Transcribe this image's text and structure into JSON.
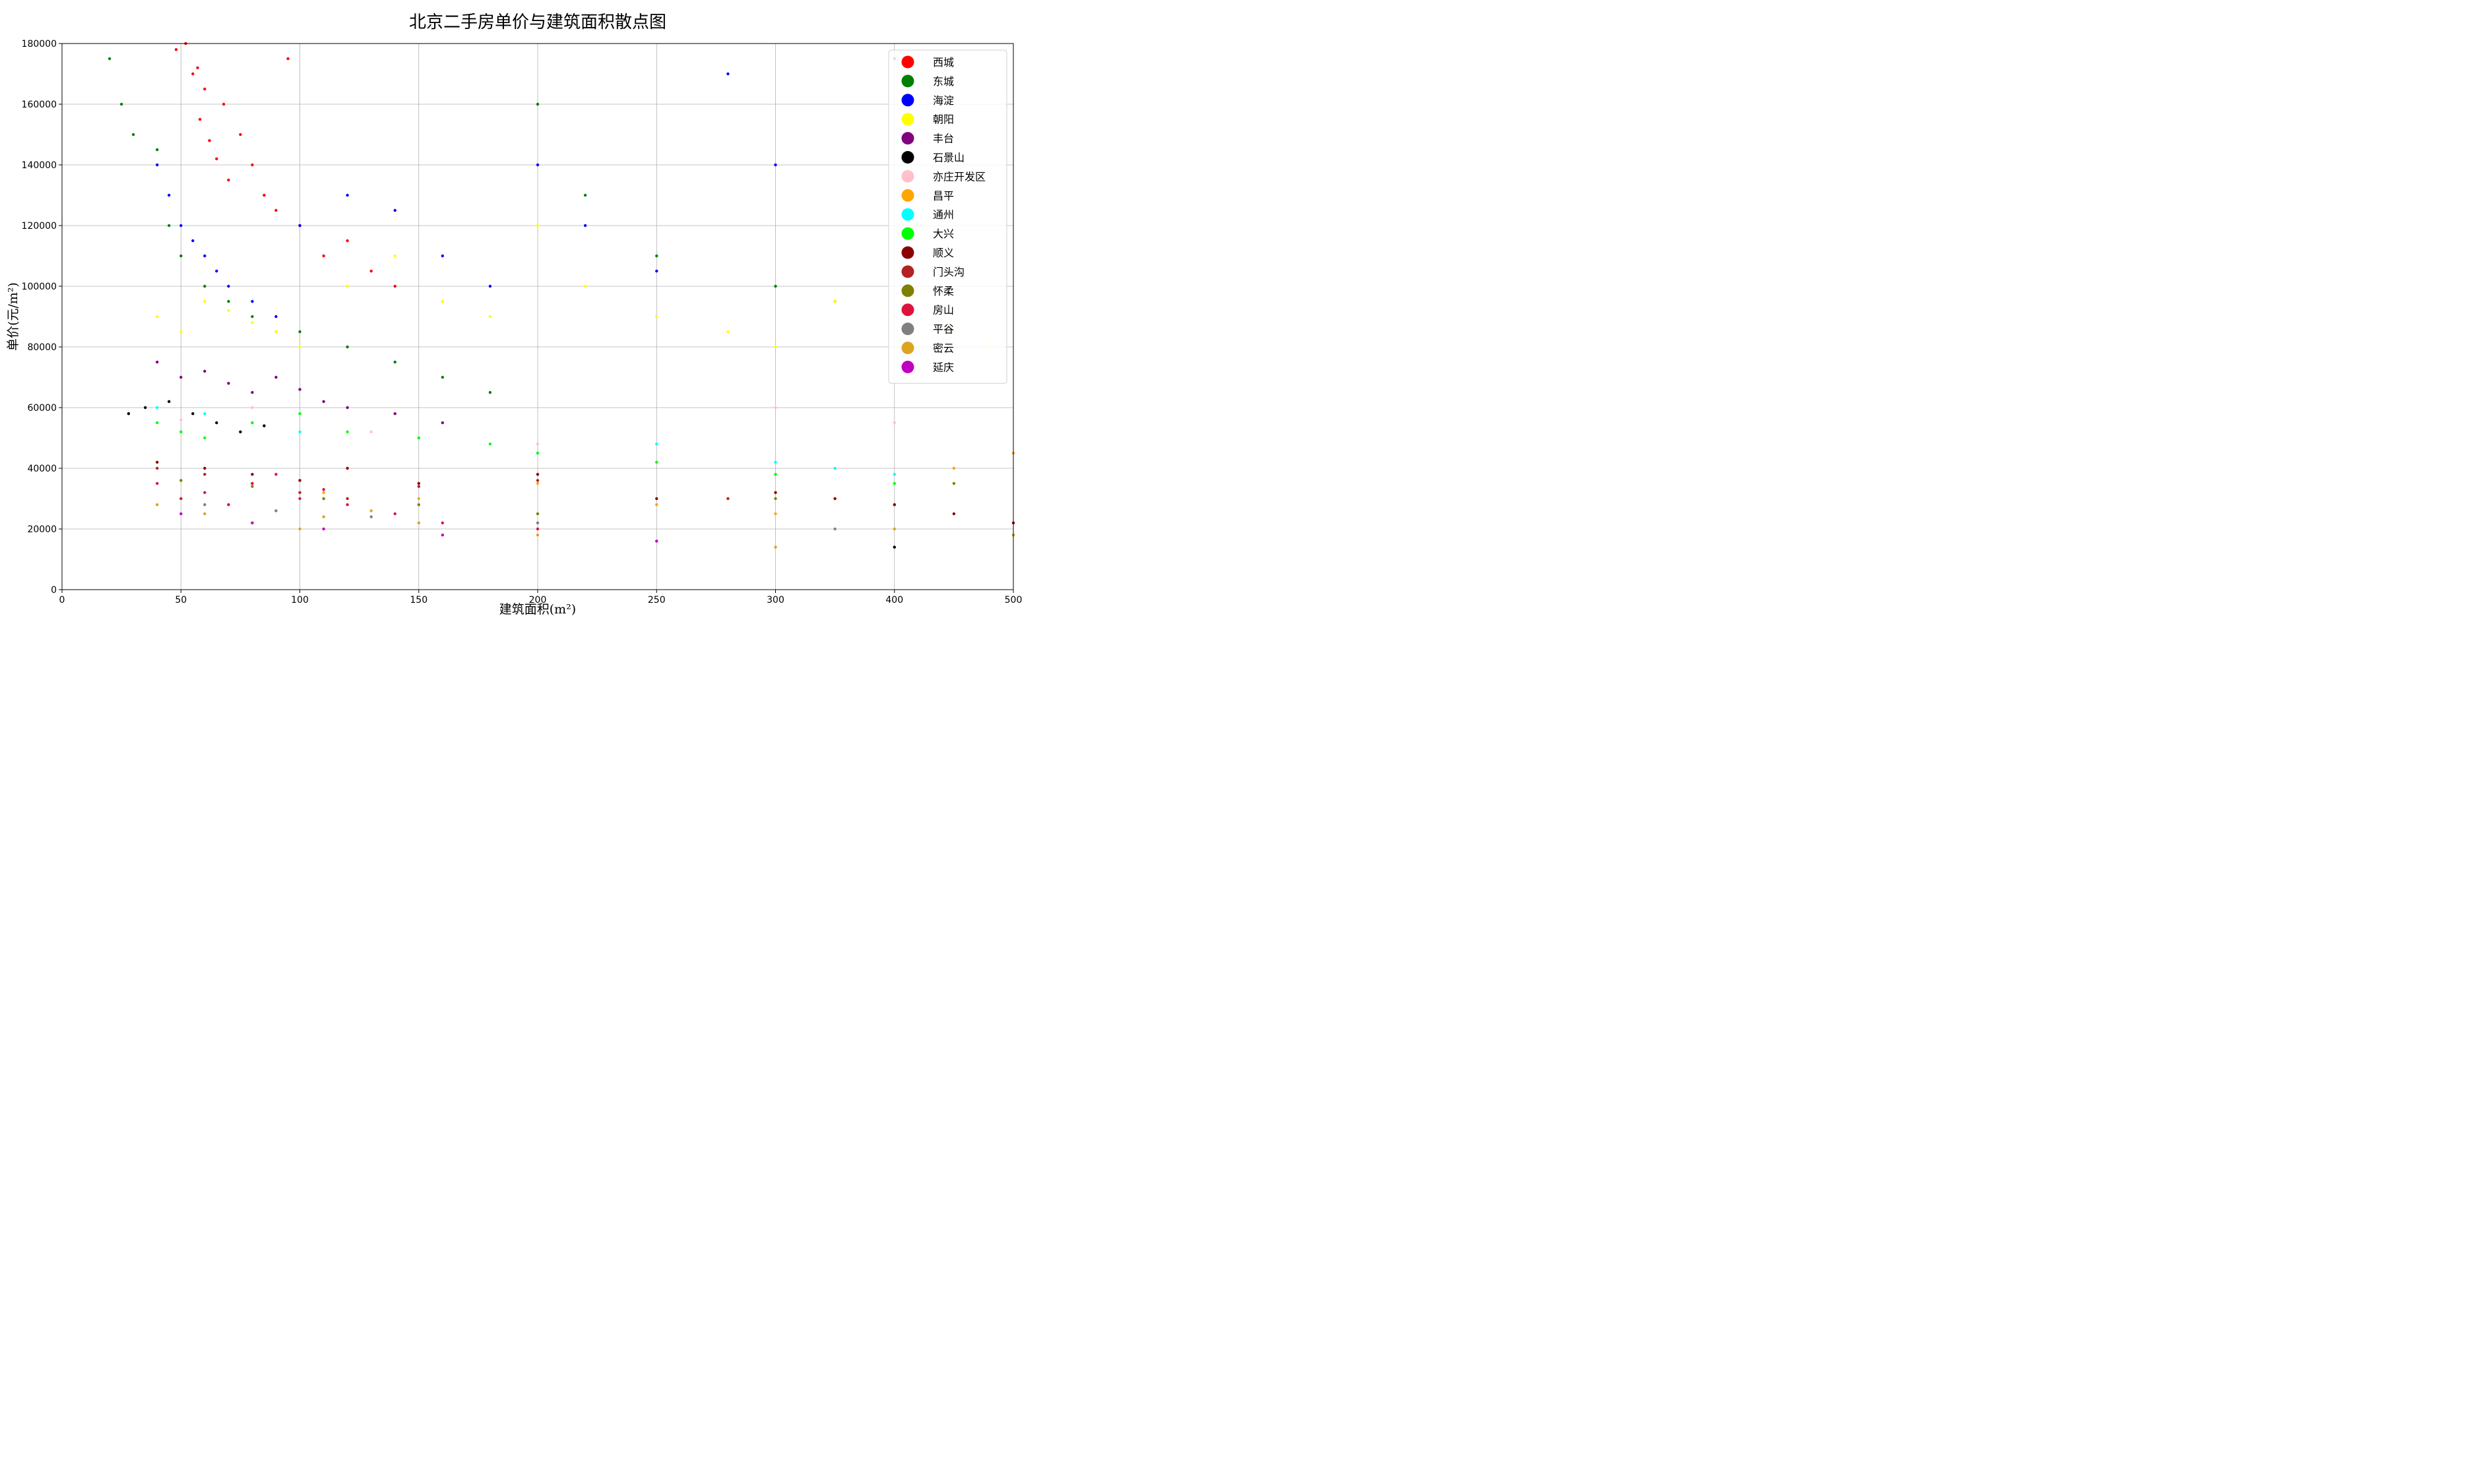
{
  "chart_data": {
    "type": "scatter",
    "title": "北京二手房单价与建筑面积散点图",
    "xlabel": "建筑面积(m²)",
    "ylabel": "单价(元/m²)",
    "xlim": [
      0,
      500
    ],
    "ylim": [
      0,
      180000
    ],
    "x_ticks": [
      0,
      50,
      100,
      150,
      200,
      250,
      300,
      400,
      500
    ],
    "y_ticks": [
      0,
      20000,
      40000,
      60000,
      80000,
      100000,
      120000,
      140000,
      160000,
      180000
    ],
    "grid": true,
    "legend_position": "top-right",
    "series": [
      {
        "name": "西城",
        "color": "#ff0000",
        "points": [
          [
            52,
            180000
          ],
          [
            55,
            170000
          ],
          [
            60,
            165000
          ],
          [
            58,
            155000
          ],
          [
            62,
            148000
          ],
          [
            65,
            142000
          ],
          [
            70,
            135000
          ],
          [
            68,
            160000
          ],
          [
            75,
            150000
          ],
          [
            80,
            140000
          ],
          [
            85,
            130000
          ],
          [
            90,
            125000
          ],
          [
            95,
            175000
          ],
          [
            100,
            120000
          ],
          [
            110,
            110000
          ],
          [
            120,
            115000
          ],
          [
            130,
            105000
          ],
          [
            140,
            100000
          ],
          [
            48,
            178000
          ],
          [
            57,
            172000
          ]
        ]
      },
      {
        "name": "东城",
        "color": "#008000",
        "points": [
          [
            20,
            175000
          ],
          [
            25,
            160000
          ],
          [
            30,
            150000
          ],
          [
            40,
            145000
          ],
          [
            45,
            120000
          ],
          [
            50,
            110000
          ],
          [
            60,
            100000
          ],
          [
            70,
            95000
          ],
          [
            80,
            90000
          ],
          [
            100,
            85000
          ],
          [
            120,
            80000
          ],
          [
            140,
            75000
          ],
          [
            160,
            70000
          ],
          [
            180,
            65000
          ],
          [
            200,
            160000
          ],
          [
            220,
            130000
          ],
          [
            250,
            110000
          ],
          [
            300,
            100000
          ],
          [
            350,
            95000
          ],
          [
            400,
            90000
          ]
        ]
      },
      {
        "name": "海淀",
        "color": "#0000ff",
        "points": [
          [
            40,
            140000
          ],
          [
            45,
            130000
          ],
          [
            50,
            120000
          ],
          [
            55,
            115000
          ],
          [
            60,
            110000
          ],
          [
            65,
            105000
          ],
          [
            70,
            100000
          ],
          [
            80,
            95000
          ],
          [
            90,
            90000
          ],
          [
            100,
            120000
          ],
          [
            120,
            130000
          ],
          [
            140,
            125000
          ],
          [
            160,
            110000
          ],
          [
            180,
            100000
          ],
          [
            200,
            140000
          ],
          [
            220,
            120000
          ],
          [
            250,
            105000
          ],
          [
            280,
            170000
          ],
          [
            300,
            140000
          ],
          [
            400,
            175000
          ]
        ]
      },
      {
        "name": "朝阳",
        "color": "#ffff00",
        "points": [
          [
            40,
            90000
          ],
          [
            50,
            85000
          ],
          [
            60,
            95000
          ],
          [
            70,
            92000
          ],
          [
            80,
            88000
          ],
          [
            90,
            85000
          ],
          [
            100,
            80000
          ],
          [
            120,
            100000
          ],
          [
            140,
            110000
          ],
          [
            160,
            95000
          ],
          [
            180,
            90000
          ],
          [
            200,
            120000
          ],
          [
            220,
            100000
          ],
          [
            250,
            90000
          ],
          [
            280,
            85000
          ],
          [
            300,
            80000
          ],
          [
            350,
            95000
          ],
          [
            400,
            90000
          ],
          [
            450,
            85000
          ],
          [
            480,
            80000
          ]
        ]
      },
      {
        "name": "丰台",
        "color": "#800080",
        "points": [
          [
            40,
            75000
          ],
          [
            50,
            70000
          ],
          [
            60,
            72000
          ],
          [
            70,
            68000
          ],
          [
            80,
            65000
          ],
          [
            90,
            70000
          ],
          [
            100,
            66000
          ],
          [
            110,
            62000
          ],
          [
            120,
            60000
          ],
          [
            140,
            58000
          ],
          [
            160,
            55000
          ]
        ]
      },
      {
        "name": "石景山",
        "color": "#000000",
        "points": [
          [
            28,
            58000
          ],
          [
            35,
            60000
          ],
          [
            45,
            62000
          ],
          [
            55,
            58000
          ],
          [
            65,
            55000
          ],
          [
            75,
            52000
          ],
          [
            85,
            54000
          ],
          [
            400,
            14000
          ]
        ]
      },
      {
        "name": "亦庄开发区",
        "color": "#ffc0cb",
        "points": [
          [
            50,
            56000
          ],
          [
            80,
            60000
          ],
          [
            100,
            58000
          ],
          [
            130,
            52000
          ],
          [
            200,
            48000
          ],
          [
            300,
            60000
          ],
          [
            400,
            55000
          ]
        ]
      },
      {
        "name": "昌平",
        "color": "#ffa500",
        "points": [
          [
            50,
            30000
          ],
          [
            70,
            28000
          ],
          [
            90,
            26000
          ],
          [
            110,
            32000
          ],
          [
            150,
            30000
          ],
          [
            200,
            35000
          ],
          [
            250,
            28000
          ],
          [
            300,
            25000
          ],
          [
            350,
            30000
          ],
          [
            400,
            28000
          ],
          [
            450,
            40000
          ],
          [
            500,
            45000
          ]
        ]
      },
      {
        "name": "通州",
        "color": "#00ffff",
        "points": [
          [
            40,
            60000
          ],
          [
            60,
            58000
          ],
          [
            80,
            55000
          ],
          [
            100,
            52000
          ],
          [
            150,
            50000
          ],
          [
            200,
            45000
          ],
          [
            250,
            48000
          ],
          [
            300,
            42000
          ],
          [
            350,
            40000
          ],
          [
            400,
            38000
          ]
        ]
      },
      {
        "name": "大兴",
        "color": "#00ff00",
        "points": [
          [
            40,
            55000
          ],
          [
            50,
            52000
          ],
          [
            60,
            50000
          ],
          [
            80,
            55000
          ],
          [
            100,
            58000
          ],
          [
            120,
            52000
          ],
          [
            150,
            50000
          ],
          [
            180,
            48000
          ],
          [
            200,
            45000
          ],
          [
            250,
            42000
          ],
          [
            300,
            38000
          ],
          [
            400,
            35000
          ]
        ]
      },
      {
        "name": "顺义",
        "color": "#8b0000",
        "points": [
          [
            40,
            42000
          ],
          [
            60,
            40000
          ],
          [
            80,
            38000
          ],
          [
            100,
            36000
          ],
          [
            120,
            40000
          ],
          [
            150,
            35000
          ],
          [
            200,
            38000
          ],
          [
            250,
            30000
          ],
          [
            300,
            32000
          ],
          [
            350,
            30000
          ],
          [
            400,
            28000
          ],
          [
            450,
            25000
          ],
          [
            500,
            22000
          ]
        ]
      },
      {
        "name": "门头沟",
        "color": "#b22222",
        "points": [
          [
            40,
            40000
          ],
          [
            60,
            38000
          ],
          [
            80,
            35000
          ],
          [
            100,
            32000
          ],
          [
            120,
            30000
          ],
          [
            150,
            34000
          ],
          [
            200,
            36000
          ],
          [
            280,
            30000
          ]
        ]
      },
      {
        "name": "怀柔",
        "color": "#808000",
        "points": [
          [
            50,
            36000
          ],
          [
            80,
            34000
          ],
          [
            110,
            30000
          ],
          [
            150,
            28000
          ],
          [
            200,
            25000
          ],
          [
            300,
            30000
          ],
          [
            450,
            35000
          ]
        ]
      },
      {
        "name": "房山",
        "color": "#dc143c",
        "points": [
          [
            40,
            35000
          ],
          [
            50,
            30000
          ],
          [
            60,
            32000
          ],
          [
            70,
            28000
          ],
          [
            80,
            35000
          ],
          [
            90,
            38000
          ],
          [
            100,
            30000
          ],
          [
            110,
            33000
          ],
          [
            120,
            28000
          ],
          [
            140,
            25000
          ],
          [
            160,
            22000
          ],
          [
            200,
            20000
          ]
        ]
      },
      {
        "name": "平谷",
        "color": "#808080",
        "points": [
          [
            60,
            28000
          ],
          [
            90,
            26000
          ],
          [
            130,
            24000
          ],
          [
            200,
            22000
          ],
          [
            350,
            20000
          ],
          [
            500,
            18000
          ]
        ]
      },
      {
        "name": "密云",
        "color": "#daa520",
        "points": [
          [
            40,
            28000
          ],
          [
            60,
            25000
          ],
          [
            80,
            22000
          ],
          [
            100,
            20000
          ],
          [
            110,
            24000
          ],
          [
            130,
            26000
          ],
          [
            150,
            22000
          ],
          [
            200,
            18000
          ],
          [
            250,
            16000
          ],
          [
            300,
            14000
          ],
          [
            400,
            20000
          ],
          [
            500,
            18000
          ]
        ]
      },
      {
        "name": "延庆",
        "color": "#c000c0",
        "points": [
          [
            50,
            25000
          ],
          [
            80,
            22000
          ],
          [
            110,
            20000
          ],
          [
            160,
            18000
          ],
          [
            250,
            16000
          ]
        ]
      }
    ]
  }
}
